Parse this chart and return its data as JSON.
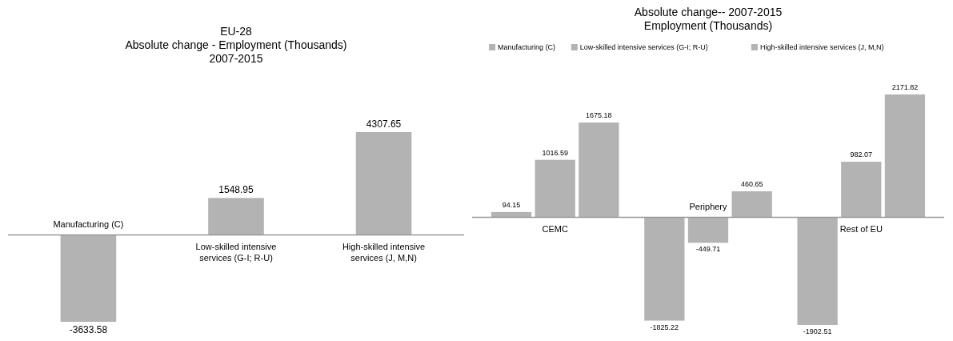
{
  "chart_data": [
    {
      "type": "bar",
      "title": "EU-28\nAbsolute change - Employment (Thousands)\n2007-2015",
      "categories": [
        "Manufacturing (C)",
        "Low-skilled intensive services (G-I; R-U)",
        "High-skilled intensive services (J, M,N)"
      ],
      "values": [
        -3633.58,
        1548.95,
        4307.65
      ],
      "color": "#b3b3b3",
      "data_labels": true
    },
    {
      "type": "bar",
      "title": "Absolute change-- 2007-2015\nEmployment (Thousands)",
      "categories": [
        "CEMC",
        "Periphery",
        "Rest of EU"
      ],
      "legend": "top",
      "data_labels": true,
      "series": [
        {
          "name": "Manufacturing (C)",
          "color": "#b3b3b3",
          "values": [
            94.15,
            -1825.22,
            -1902.51
          ]
        },
        {
          "name": "Low-skilled intensive services (G-I; R-U)",
          "color": "#b3b3b3",
          "values": [
            1016.59,
            -449.71,
            982.07
          ]
        },
        {
          "name": "High-skilled intensive services (J, M,N)",
          "color": "#b3b3b3",
          "values": [
            1675.18,
            460.65,
            2171.82
          ]
        }
      ]
    }
  ]
}
